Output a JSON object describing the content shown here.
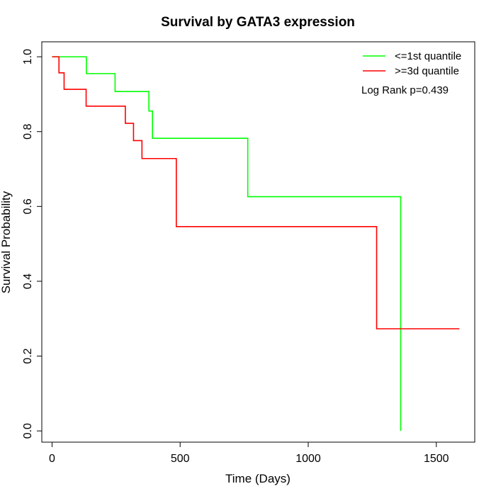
{
  "chart_data": {
    "type": "line",
    "title": "Survival by GATA3 expression",
    "xlabel": "Time (Days)",
    "ylabel": "Survival Probability",
    "xlim": [
      -40,
      1650
    ],
    "ylim": [
      -0.03,
      1.04
    ],
    "xticks": [
      0,
      500,
      1000,
      1500
    ],
    "yticks": [
      0.0,
      0.2,
      0.4,
      0.6,
      0.8,
      1.0
    ],
    "xtick_labels": [
      "0",
      "500",
      "1000",
      "1500"
    ],
    "ytick_labels": [
      "0.0",
      "0.2",
      "0.4",
      "0.6",
      "0.8",
      "1.0"
    ],
    "grid": false,
    "legend_position": "top-right",
    "annotation": "Log Rank p=0.439",
    "series": [
      {
        "name": "<=1st quantile",
        "color": "#00ff00",
        "steps": [
          [
            0,
            1.0
          ],
          [
            134,
            0.955
          ],
          [
            246,
            0.907
          ],
          [
            378,
            0.855
          ],
          [
            392,
            0.782
          ],
          [
            764,
            0.626
          ],
          [
            1361,
            0.0
          ]
        ]
      },
      {
        "name": ">=3d quantile",
        "color": "#ff0000",
        "steps": [
          [
            0,
            1.0
          ],
          [
            27,
            0.957
          ],
          [
            47,
            0.913
          ],
          [
            133,
            0.868
          ],
          [
            286,
            0.822
          ],
          [
            318,
            0.776
          ],
          [
            351,
            0.728
          ],
          [
            485,
            0.546
          ],
          [
            1267,
            0.273
          ],
          [
            1590,
            0.273
          ]
        ]
      }
    ]
  }
}
